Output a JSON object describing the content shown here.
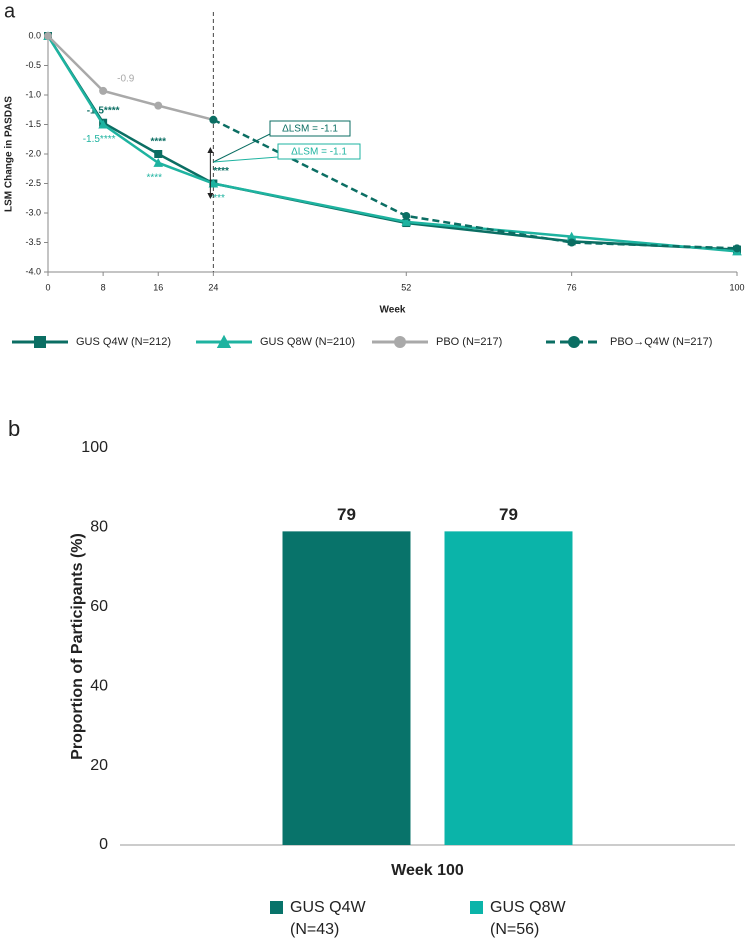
{
  "chart_data": [
    {
      "type": "line",
      "title": "a",
      "ylabel": "LSM Change in PASDAS",
      "xlabel": "Week",
      "x": [
        0,
        8,
        16,
        24,
        52,
        76,
        100
      ],
      "xlim": [
        0,
        100
      ],
      "xticks": [
        0,
        8,
        16,
        24,
        52,
        76,
        100
      ],
      "ylim": [
        -4,
        0
      ],
      "yticks": [
        {
          "value": 0,
          "label": "0.0"
        },
        -0.5,
        {
          "value": -1,
          "label": "-1.0"
        },
        -1.5,
        {
          "value": -2,
          "label": "-2.0"
        },
        -2.5,
        {
          "value": -3,
          "label": "-3.0"
        },
        -3.5,
        {
          "value": -4,
          "label": "-4.0"
        }
      ],
      "reference_x": 24,
      "series": [
        {
          "name": "GUS Q4W (N=212)",
          "color": "#0b6e63",
          "marker": "square",
          "style": "solid",
          "values": [
            0,
            -1.47,
            -2.0,
            -2.5,
            -3.17,
            -3.48,
            -3.62
          ],
          "value_labels": [
            null,
            "-1.5****",
            "****",
            "****",
            null,
            null,
            null
          ]
        },
        {
          "name": "GUS Q8W (N=210)",
          "color": "#1eb3a0",
          "marker": "triangle",
          "style": "solid",
          "values": [
            0,
            -1.5,
            -2.15,
            -2.5,
            -3.15,
            -3.4,
            -3.65
          ],
          "value_labels": [
            null,
            "-1.5****",
            "****",
            "****",
            null,
            null,
            null
          ]
        },
        {
          "name": "PBO (N=217)",
          "color": "#a9a9a9",
          "marker": "circle",
          "style": "solid",
          "values": [
            0,
            -0.93,
            -1.18,
            -1.42,
            null,
            null,
            null
          ],
          "value_labels": [
            null,
            "-0.9",
            null,
            null,
            null,
            null,
            null
          ]
        },
        {
          "name": "PBO→Q4W (N=217)",
          "color": "#0b6e63",
          "marker": "circle",
          "style": "dashed",
          "values": [
            null,
            null,
            null,
            -1.42,
            -3.05,
            -3.5,
            -3.6
          ]
        }
      ],
      "annotations": [
        "ΔLSM = -1.1",
        "ΔLSM = -1.1"
      ]
    },
    {
      "type": "bar",
      "title": "b",
      "ylabel": "Proportion of Participants (%)",
      "categories": [
        "Week 100"
      ],
      "ylim": [
        0,
        100
      ],
      "yticks": [
        0,
        20,
        40,
        60,
        80,
        100
      ],
      "series": [
        {
          "name": "GUS Q4W (N=43)",
          "color": "#08736a",
          "values": [
            79
          ]
        },
        {
          "name": "GUS Q8W (N=56)",
          "color": "#0bb4a9",
          "values": [
            79
          ]
        }
      ]
    }
  ]
}
